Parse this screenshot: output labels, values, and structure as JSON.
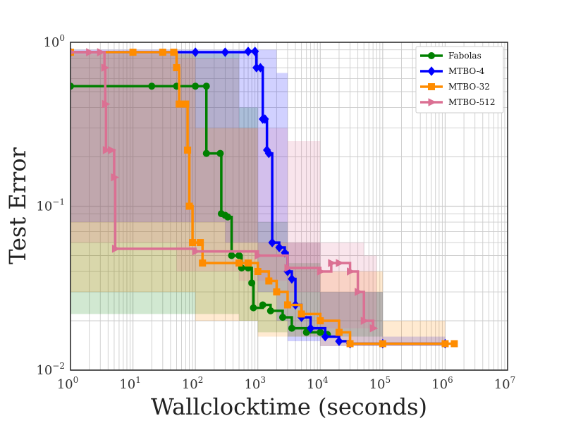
{
  "chart_data": {
    "type": "line",
    "title": "",
    "xlabel": "Wallclocktime (seconds)",
    "ylabel": "Test Error",
    "xscale": "log",
    "yscale": "log",
    "xlim": [
      1,
      10000000
    ],
    "ylim": [
      0.01,
      1
    ],
    "grid": true,
    "legend_position": "top-right",
    "x_ticks": [
      {
        "base": "10",
        "exp": "0"
      },
      {
        "base": "10",
        "exp": "1"
      },
      {
        "base": "10",
        "exp": "2"
      },
      {
        "base": "10",
        "exp": "3"
      },
      {
        "base": "10",
        "exp": "4"
      },
      {
        "base": "10",
        "exp": "5"
      },
      {
        "base": "10",
        "exp": "6"
      },
      {
        "base": "10",
        "exp": "7"
      }
    ],
    "y_ticks": [
      {
        "base": "10",
        "exp": "0"
      },
      {
        "base": "10",
        "exp": "−1"
      },
      {
        "base": "10",
        "exp": "−2"
      }
    ],
    "series": [
      {
        "name": "Fabolas",
        "color": "#008000",
        "marker": "circle",
        "band": [
          {
            "x": 1,
            "lo": 0.022,
            "hi": 0.85
          },
          {
            "x": 100,
            "lo": 0.022,
            "hi": 0.85
          },
          {
            "x": 500,
            "lo": 0.022,
            "hi": 0.4
          },
          {
            "x": 1000,
            "lo": 0.02,
            "hi": 0.08
          },
          {
            "x": 3000,
            "lo": 0.017,
            "hi": 0.045
          },
          {
            "x": 10000,
            "lo": 0.016,
            "hi": 0.03
          },
          {
            "x": 100000,
            "lo": 0.016,
            "hi": 0.018
          }
        ],
        "points": [
          {
            "x": 1,
            "y": 0.54
          },
          {
            "x": 20,
            "y": 0.54
          },
          {
            "x": 50,
            "y": 0.54
          },
          {
            "x": 100,
            "y": 0.54
          },
          {
            "x": 150,
            "y": 0.54
          },
          {
            "x": 150,
            "y": 0.21
          },
          {
            "x": 250,
            "y": 0.21
          },
          {
            "x": 260,
            "y": 0.09
          },
          {
            "x": 300,
            "y": 0.088
          },
          {
            "x": 330,
            "y": 0.086
          },
          {
            "x": 380,
            "y": 0.05
          },
          {
            "x": 500,
            "y": 0.05
          },
          {
            "x": 550,
            "y": 0.042
          },
          {
            "x": 700,
            "y": 0.042
          },
          {
            "x": 800,
            "y": 0.034
          },
          {
            "x": 850,
            "y": 0.024
          },
          {
            "x": 1200,
            "y": 0.025
          },
          {
            "x": 1600,
            "y": 0.023
          },
          {
            "x": 2500,
            "y": 0.021
          },
          {
            "x": 3500,
            "y": 0.018
          },
          {
            "x": 6000,
            "y": 0.017
          },
          {
            "x": 10000,
            "y": 0.017
          },
          {
            "x": 13000,
            "y": 0.0165
          }
        ]
      },
      {
        "name": "MTBO-4",
        "color": "#0000ff",
        "marker": "diamond",
        "band": [
          {
            "x": 1,
            "lo": 0.08,
            "hi": 0.9
          },
          {
            "x": 300,
            "lo": 0.08,
            "hi": 0.9
          },
          {
            "x": 1000,
            "lo": 0.06,
            "hi": 0.9
          },
          {
            "x": 2000,
            "lo": 0.03,
            "hi": 0.65
          },
          {
            "x": 3000,
            "lo": 0.02,
            "hi": 0.06
          },
          {
            "x": 10000,
            "lo": 0.015,
            "hi": 0.03
          },
          {
            "x": 100000,
            "lo": 0.014,
            "hi": 0.016
          },
          {
            "x": 1000000,
            "lo": 0.014,
            "hi": 0.015
          }
        ],
        "points": [
          {
            "x": 1,
            "y": 0.87
          },
          {
            "x": 100,
            "y": 0.87
          },
          {
            "x": 300,
            "y": 0.87
          },
          {
            "x": 700,
            "y": 0.88
          },
          {
            "x": 900,
            "y": 0.88
          },
          {
            "x": 950,
            "y": 0.7
          },
          {
            "x": 1100,
            "y": 0.7
          },
          {
            "x": 1200,
            "y": 0.34
          },
          {
            "x": 1300,
            "y": 0.34
          },
          {
            "x": 1400,
            "y": 0.22
          },
          {
            "x": 1500,
            "y": 0.21
          },
          {
            "x": 1700,
            "y": 0.06
          },
          {
            "x": 2200,
            "y": 0.056
          },
          {
            "x": 2700,
            "y": 0.052
          },
          {
            "x": 3000,
            "y": 0.04
          },
          {
            "x": 3500,
            "y": 0.036
          },
          {
            "x": 4000,
            "y": 0.025
          },
          {
            "x": 5000,
            "y": 0.021
          },
          {
            "x": 7000,
            "y": 0.018
          },
          {
            "x": 12000,
            "y": 0.016
          },
          {
            "x": 20000,
            "y": 0.015
          },
          {
            "x": 30000,
            "y": 0.0145
          },
          {
            "x": 100000,
            "y": 0.0145
          },
          {
            "x": 1000000,
            "y": 0.0145
          }
        ]
      },
      {
        "name": "MTBO-32",
        "color": "#ff8c00",
        "marker": "square",
        "band": [
          {
            "x": 1,
            "lo": 0.03,
            "hi": 0.85
          },
          {
            "x": 30,
            "lo": 0.03,
            "hi": 0.85
          },
          {
            "x": 100,
            "lo": 0.03,
            "hi": 0.3
          },
          {
            "x": 1000,
            "lo": 0.02,
            "hi": 0.06
          },
          {
            "x": 10000,
            "lo": 0.016,
            "hi": 0.04
          },
          {
            "x": 100000,
            "lo": 0.014,
            "hi": 0.02
          },
          {
            "x": 1000000,
            "lo": 0.014,
            "hi": 0.016
          }
        ],
        "points": [
          {
            "x": 1,
            "y": 0.87
          },
          {
            "x": 10,
            "y": 0.87
          },
          {
            "x": 30,
            "y": 0.87
          },
          {
            "x": 45,
            "y": 0.87
          },
          {
            "x": 50,
            "y": 0.7
          },
          {
            "x": 55,
            "y": 0.42
          },
          {
            "x": 70,
            "y": 0.42
          },
          {
            "x": 75,
            "y": 0.22
          },
          {
            "x": 80,
            "y": 0.1
          },
          {
            "x": 90,
            "y": 0.06
          },
          {
            "x": 120,
            "y": 0.06
          },
          {
            "x": 130,
            "y": 0.045
          },
          {
            "x": 500,
            "y": 0.045
          },
          {
            "x": 700,
            "y": 0.045
          },
          {
            "x": 1000,
            "y": 0.04
          },
          {
            "x": 1500,
            "y": 0.035
          },
          {
            "x": 2000,
            "y": 0.03
          },
          {
            "x": 3000,
            "y": 0.025
          },
          {
            "x": 5000,
            "y": 0.022
          },
          {
            "x": 10000,
            "y": 0.02
          },
          {
            "x": 20000,
            "y": 0.017
          },
          {
            "x": 30000,
            "y": 0.0145
          },
          {
            "x": 100000,
            "y": 0.0145
          },
          {
            "x": 1000000,
            "y": 0.0145
          },
          {
            "x": 1400000,
            "y": 0.0145
          }
        ]
      },
      {
        "name": "MTBO-512",
        "color": "#db7093",
        "marker": "triangle-right",
        "band": [
          {
            "x": 1,
            "lo": 0.08,
            "hi": 0.85
          },
          {
            "x": 5,
            "lo": 0.06,
            "hi": 0.85
          },
          {
            "x": 50,
            "lo": 0.06,
            "hi": 0.8
          },
          {
            "x": 500,
            "lo": 0.04,
            "hi": 0.3
          },
          {
            "x": 3000,
            "lo": 0.035,
            "hi": 0.25
          },
          {
            "x": 10000,
            "lo": 0.03,
            "hi": 0.06
          },
          {
            "x": 50000,
            "lo": 0.018,
            "hi": 0.05
          },
          {
            "x": 80000,
            "lo": 0.018,
            "hi": 0.03
          }
        ],
        "points": [
          {
            "x": 1,
            "y": 0.87
          },
          {
            "x": 2,
            "y": 0.87
          },
          {
            "x": 3,
            "y": 0.87
          },
          {
            "x": 3.5,
            "y": 0.7
          },
          {
            "x": 3.6,
            "y": 0.42
          },
          {
            "x": 3.7,
            "y": 0.22
          },
          {
            "x": 4.5,
            "y": 0.22
          },
          {
            "x": 5,
            "y": 0.15
          },
          {
            "x": 5.2,
            "y": 0.055
          },
          {
            "x": 100,
            "y": 0.053
          },
          {
            "x": 1000,
            "y": 0.05
          },
          {
            "x": 3000,
            "y": 0.042
          },
          {
            "x": 10000,
            "y": 0.04
          },
          {
            "x": 15000,
            "y": 0.045
          },
          {
            "x": 20000,
            "y": 0.045
          },
          {
            "x": 30000,
            "y": 0.04
          },
          {
            "x": 40000,
            "y": 0.03
          },
          {
            "x": 50000,
            "y": 0.02
          },
          {
            "x": 70000,
            "y": 0.018
          }
        ]
      }
    ]
  }
}
